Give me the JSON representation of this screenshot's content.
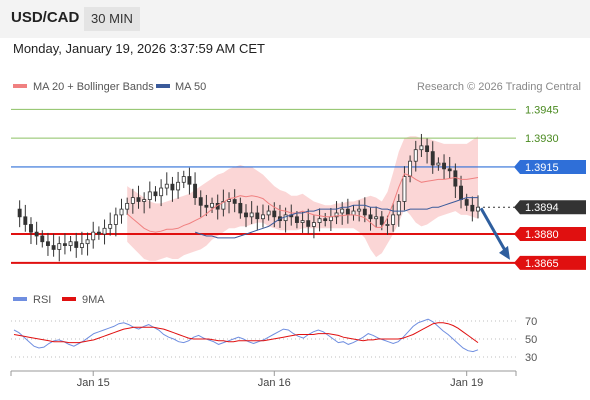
{
  "header": {
    "symbol": "USD/CAD",
    "timeframe": "30 MIN",
    "datetime": "Monday, January 19, 2026 3:37:59 AM CET"
  },
  "legend": {
    "ma20": {
      "label": "MA 20 + Bollinger Bands",
      "color": "#f08080"
    },
    "ma50": {
      "label": "MA 50",
      "color": "#3a5a9a"
    }
  },
  "credit": "Research © 2026 Trading Central",
  "colors": {
    "up_candle": "#ffffff",
    "down_candle": "#333333",
    "bollinger_fill": "#fbd6d6",
    "resistance": "#8cc063",
    "pivot": "#2f6fd8",
    "support": "#e01010",
    "current": "#333333",
    "arrow": "#2e5e9e",
    "rsi": "#6f8ee0",
    "rsi_ma": "#e01010"
  },
  "chart_data": [
    {
      "type": "line",
      "subtype": "candlestick",
      "y_range": [
        1.3855,
        1.3952
      ],
      "x_ticks": [
        {
          "label": "Jan 15",
          "index": 14
        },
        {
          "label": "Jan 16",
          "index": 46
        },
        {
          "label": "Jan 19",
          "index": 80
        }
      ],
      "levels": [
        {
          "label": "1.3945",
          "value": 1.3945,
          "kind": "resistance"
        },
        {
          "label": "1.3930",
          "value": 1.393,
          "kind": "resistance"
        },
        {
          "label": "1.3915",
          "value": 1.3915,
          "kind": "pivot"
        },
        {
          "label": "1.3894",
          "value": 1.3894,
          "kind": "current"
        },
        {
          "label": "1.3880",
          "value": 1.388,
          "kind": "support"
        },
        {
          "label": "1.3865",
          "value": 1.3865,
          "kind": "support"
        }
      ],
      "close": [
        1.3893,
        1.3889,
        1.3885,
        1.3881,
        1.3879,
        1.3876,
        1.3874,
        1.3872,
        1.3875,
        1.3874,
        1.3876,
        1.3873,
        1.3875,
        1.3877,
        1.3881,
        1.388,
        1.3883,
        1.3885,
        1.389,
        1.3893,
        1.3896,
        1.3899,
        1.3897,
        1.3898,
        1.3902,
        1.39,
        1.3904,
        1.3906,
        1.3903,
        1.3907,
        1.391,
        1.3906,
        1.3899,
        1.3895,
        1.3894,
        1.3896,
        1.3893,
        1.3897,
        1.3898,
        1.3896,
        1.3891,
        1.3889,
        1.3891,
        1.3888,
        1.389,
        1.3892,
        1.3889,
        1.3887,
        1.389,
        1.3889,
        1.3886,
        1.3887,
        1.3884,
        1.3886,
        1.3888,
        1.3887,
        1.3889,
        1.3891,
        1.3893,
        1.389,
        1.3892,
        1.3893,
        1.389,
        1.3888,
        1.3889,
        1.3885,
        1.3885,
        1.389,
        1.3897,
        1.391,
        1.3918,
        1.3924,
        1.3926,
        1.3923,
        1.3916,
        1.3917,
        1.3914,
        1.3913,
        1.3905,
        1.3898,
        1.3895,
        1.3892,
        1.3894
      ],
      "bollinger_upper": [
        1.3905,
        1.3903,
        1.3901,
        1.3899,
        1.3897,
        1.3896,
        1.3896,
        1.3897,
        1.3898,
        1.3899,
        1.39,
        1.3901,
        1.3903,
        1.3905,
        1.3907,
        1.3909,
        1.3911,
        1.3912,
        1.3914,
        1.3915,
        1.3916,
        1.3915,
        1.3915,
        1.3913,
        1.3911,
        1.3908,
        1.3905,
        1.3903,
        1.3902,
        1.39,
        1.39,
        1.3901,
        1.3899,
        1.3897,
        1.3896,
        1.3895,
        1.3895,
        1.3896,
        1.3896,
        1.3897,
        1.3897,
        1.3898,
        1.3899,
        1.39,
        1.3899,
        1.3897,
        1.3902,
        1.3912,
        1.3923,
        1.393,
        1.3931,
        1.3931,
        1.393,
        1.393,
        1.3929,
        1.3928,
        1.3927,
        1.3927,
        1.3927,
        1.3927,
        1.3927,
        1.3929,
        1.3931
      ],
      "bollinger_lower": [
        1.3876,
        1.3873,
        1.387,
        1.3867,
        1.3866,
        1.3866,
        1.3867,
        1.3868,
        1.3867,
        1.3867,
        1.3869,
        1.387,
        1.3871,
        1.3872,
        1.3874,
        1.3877,
        1.3879,
        1.3881,
        1.3883,
        1.3883,
        1.3884,
        1.3884,
        1.3885,
        1.3886,
        1.3886,
        1.3884,
        1.3883,
        1.3882,
        1.3882,
        1.3882,
        1.3882,
        1.3883,
        1.3883,
        1.3883,
        1.3883,
        1.3883,
        1.3883,
        1.3883,
        1.3883,
        1.3883,
        1.3883,
        1.3881,
        1.3878,
        1.3872,
        1.3868,
        1.387,
        1.3875,
        1.388,
        1.3886,
        1.3893,
        1.389,
        1.3886,
        1.3884,
        1.3885,
        1.3887,
        1.3889,
        1.389,
        1.3891,
        1.3892,
        1.389,
        1.389,
        1.3889,
        1.3888
      ],
      "ma50": [
        1.3881,
        1.388,
        1.3879,
        1.3879,
        1.3878,
        1.3878,
        1.3878,
        1.3878,
        1.3879,
        1.388,
        1.3881,
        1.3882,
        1.3883,
        1.3884,
        1.3886,
        1.3888,
        1.3889,
        1.389,
        1.3891,
        1.3891,
        1.3892,
        1.3892,
        1.3893,
        1.3893,
        1.3893,
        1.3893,
        1.3894,
        1.3894,
        1.3895,
        1.3895,
        1.3895,
        1.3894,
        1.3894,
        1.3893,
        1.3893,
        1.3892,
        1.3892,
        1.3892,
        1.3893,
        1.3893,
        1.3893,
        1.3893,
        1.3894,
        1.3894,
        1.3895,
        1.3896,
        1.3897,
        1.3898,
        1.3899,
        1.3899,
        1.3899
      ],
      "forecast": {
        "from": 1.3894,
        "to": 1.3865
      }
    },
    {
      "type": "line",
      "y_range": [
        20,
        80
      ],
      "y_ticks": [
        "70",
        "50",
        "30"
      ],
      "series": [
        {
          "name": "RSI",
          "values": [
            60,
            57,
            52,
            47,
            42,
            40,
            41,
            45,
            48,
            49,
            47,
            44,
            42,
            45,
            48,
            52,
            56,
            58,
            60,
            62,
            64,
            67,
            68,
            66,
            63,
            61,
            64,
            66,
            63,
            60,
            55,
            52,
            50,
            47,
            46,
            48,
            52,
            54,
            51,
            49,
            47,
            44,
            46,
            48,
            50,
            52,
            50,
            47,
            45,
            47,
            49,
            52,
            55,
            58,
            61,
            60,
            56,
            53,
            51,
            55,
            58,
            60,
            58,
            54,
            50,
            46,
            47,
            44,
            46,
            49,
            52,
            56,
            54,
            51,
            49,
            47,
            45,
            47,
            52,
            58,
            64,
            68,
            70,
            72,
            69,
            64,
            59,
            55,
            50,
            45,
            40,
            37,
            36,
            38
          ]
        },
        {
          "name": "9MA",
          "values": [
            55,
            54,
            53,
            52,
            51,
            50,
            49,
            48,
            47,
            47,
            47,
            46,
            46,
            46,
            47,
            48,
            49,
            51,
            53,
            55,
            57,
            59,
            61,
            62,
            63,
            63,
            63,
            63,
            63,
            62,
            61,
            59,
            57,
            55,
            53,
            51,
            50,
            50,
            50,
            50,
            49,
            48,
            48,
            47,
            47,
            48,
            48,
            48,
            48,
            48,
            48,
            49,
            50,
            51,
            52,
            53,
            54,
            55,
            55,
            55,
            55,
            56,
            56,
            56,
            55,
            54,
            52,
            51,
            50,
            49,
            48,
            49,
            49,
            50,
            50,
            50,
            50,
            50,
            51,
            53,
            55,
            58,
            61,
            64,
            67,
            68,
            68,
            67,
            65,
            62,
            58,
            54,
            50,
            46
          ]
        }
      ]
    }
  ]
}
